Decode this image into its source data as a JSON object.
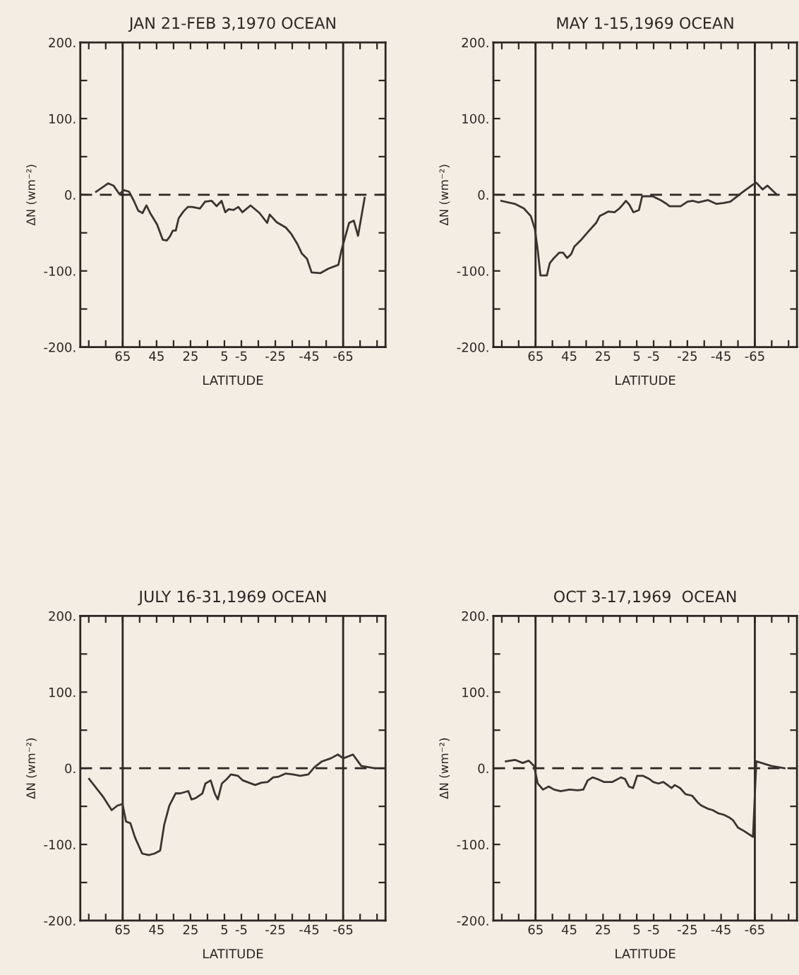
{
  "chart_data": [
    {
      "type": "line",
      "title": "JAN 21-FEB 3,1970 OCEAN",
      "xlabel": "LATITUDE",
      "ylabel": "ΔN (wm⁻²)",
      "xlim": [
        90,
        -90
      ],
      "ylim": [
        -200,
        200
      ],
      "xticks": [
        {
          "value": 85,
          "label": null
        },
        {
          "value": 75,
          "label": null
        },
        65,
        {
          "value": 55,
          "label": null
        },
        45,
        {
          "value": 35,
          "label": null
        },
        25,
        {
          "value": 15,
          "label": null
        },
        5,
        -5,
        {
          "value": -15,
          "label": null
        },
        -25,
        {
          "value": -35,
          "label": null
        },
        -45,
        {
          "value": -55,
          "label": null
        },
        -65,
        {
          "value": -75,
          "label": null
        },
        {
          "value": -85,
          "label": null
        }
      ],
      "yticks": [
        {
          "value": -200,
          "label": "-200."
        },
        {
          "value": -150,
          "label": null
        },
        {
          "value": -100,
          "label": "-100."
        },
        {
          "value": -50,
          "label": null
        },
        {
          "value": 0,
          "label": "0."
        },
        {
          "value": 50,
          "label": null
        },
        {
          "value": 100,
          "label": "100."
        },
        {
          "value": 150,
          "label": null
        },
        {
          "value": 200,
          "label": "200."
        }
      ],
      "ref_lines": [
        {
          "axis": "y",
          "value": 0,
          "line_style": "dashed"
        },
        {
          "axis": "x",
          "value": 65,
          "line_style": "solid"
        },
        {
          "axis": "x",
          "value": -65,
          "line_style": "solid"
        }
      ],
      "grid": false,
      "legend": false,
      "marker": "none",
      "line_style": "solid",
      "series": [
        {
          "color": "#3a3430",
          "x": [
            80.7,
            73.5,
            70.4,
            67.0,
            64.3,
            61.2,
            58.4,
            55.8,
            53.3,
            51.0,
            48.8,
            44.7,
            41.4,
            39.0,
            37.2,
            35.4,
            33.7,
            32.0,
            29.2,
            26.6,
            24.0,
            19.4,
            16.4,
            12.5,
            9.6,
            6.7,
            4.5,
            2.5,
            -0.4,
            -3.2,
            -5.6,
            -10.4,
            -15.7,
            -20.2,
            -21.7,
            -25.8,
            -31.2,
            -34.6,
            -38.1,
            -40.6,
            -43.7,
            -46.4,
            -51.5,
            -56.3,
            -62.2,
            -63.9,
            -68.5,
            -71.3,
            -73.8,
            -77.7
          ],
          "values": [
            4,
            15,
            12,
            1,
            6,
            4,
            -8,
            -21,
            -24,
            -14,
            -24,
            -39,
            -59,
            -60,
            -55,
            -47,
            -47,
            -31,
            -22,
            -16,
            -16,
            -18,
            -9,
            -8,
            -15,
            -8,
            -23,
            -19,
            -20,
            -16,
            -23,
            -14,
            -24,
            -37,
            -26,
            -36,
            -43,
            -52,
            -65,
            -77,
            -84,
            -102,
            -103,
            -97,
            -92,
            -74,
            -37,
            -34,
            -54,
            -4
          ]
        }
      ]
    },
    {
      "type": "line",
      "title": "MAY 1-15,1969 OCEAN",
      "xlabel": "LATITUDE",
      "ylabel": "ΔN (wm⁻²)",
      "xlim": [
        90,
        -90
      ],
      "ylim": [
        -200,
        200
      ],
      "xticks": [
        {
          "value": 85,
          "label": null
        },
        {
          "value": 75,
          "label": null
        },
        65,
        {
          "value": 55,
          "label": null
        },
        45,
        {
          "value": 35,
          "label": null
        },
        25,
        {
          "value": 15,
          "label": null
        },
        5,
        -5,
        {
          "value": -15,
          "label": null
        },
        -25,
        {
          "value": -35,
          "label": null
        },
        -45,
        {
          "value": -55,
          "label": null
        },
        -65,
        {
          "value": -75,
          "label": null
        },
        {
          "value": -85,
          "label": null
        }
      ],
      "yticks": [
        {
          "value": -200,
          "label": "-200."
        },
        {
          "value": -150,
          "label": null
        },
        {
          "value": -100,
          "label": "-100."
        },
        {
          "value": -50,
          "label": null
        },
        {
          "value": 0,
          "label": "0."
        },
        {
          "value": 50,
          "label": null
        },
        {
          "value": 100,
          "label": "100."
        },
        {
          "value": 150,
          "label": null
        },
        {
          "value": 200,
          "label": "200."
        }
      ],
      "ref_lines": [
        {
          "axis": "y",
          "value": 0,
          "line_style": "dashed"
        },
        {
          "axis": "x",
          "value": 65,
          "line_style": "solid"
        },
        {
          "axis": "x",
          "value": -65,
          "line_style": "solid"
        }
      ],
      "grid": false,
      "legend": false,
      "marker": "none",
      "line_style": "solid",
      "series": [
        {
          "color": "#3a3430",
          "x": [
            85.3,
            77.2,
            71.9,
            67.8,
            65.4,
            63.8,
            62.1,
            58.3,
            56.6,
            54.1,
            50.9,
            48.7,
            46.3,
            43.9,
            42.0,
            38.3,
            33.6,
            29.1,
            27.0,
            24.3,
            21.8,
            18.2,
            15.3,
            13.3,
            11.4,
            9.4,
            7.0,
            3.7,
            1.8,
            0.4,
            -4.4,
            -9.1,
            -12.0,
            -14.5,
            -21.0,
            -25.1,
            -28.3,
            -31.5,
            -37.3,
            -42.2,
            -46.2,
            -50.5,
            -56.9,
            -63.6,
            -65.8,
            -69.6,
            -72.5,
            -78.1
          ],
          "values": [
            -8,
            -12,
            -18,
            -28,
            -45,
            -71,
            -106,
            -106,
            -90,
            -83,
            -76,
            -76,
            -83,
            -78,
            -68,
            -60,
            -48,
            -37,
            -28,
            -25,
            -22,
            -23,
            -18,
            -13,
            -8,
            -13,
            -23,
            -20,
            -2,
            -2,
            -2,
            -7,
            -11,
            -15,
            -15,
            -9,
            -8,
            -10,
            -7,
            -12,
            -11,
            -9,
            2,
            13,
            16,
            7,
            12,
            0
          ]
        }
      ]
    },
    {
      "type": "line",
      "title": "JULY 16-31,1969 OCEAN",
      "xlabel": "LATITUDE",
      "ylabel": "ΔN (wm⁻²)",
      "xlim": [
        90,
        -90
      ],
      "ylim": [
        -200,
        200
      ],
      "xticks": [
        {
          "value": 85,
          "label": null
        },
        {
          "value": 75,
          "label": null
        },
        65,
        {
          "value": 55,
          "label": null
        },
        45,
        {
          "value": 35,
          "label": null
        },
        25,
        {
          "value": 15,
          "label": null
        },
        5,
        -5,
        {
          "value": -15,
          "label": null
        },
        -25,
        {
          "value": -35,
          "label": null
        },
        -45,
        {
          "value": -55,
          "label": null
        },
        -65,
        {
          "value": -75,
          "label": null
        },
        {
          "value": -85,
          "label": null
        }
      ],
      "yticks": [
        {
          "value": -200,
          "label": "-200."
        },
        {
          "value": -150,
          "label": null
        },
        {
          "value": -100,
          "label": "-100."
        },
        {
          "value": -50,
          "label": null
        },
        {
          "value": 0,
          "label": "0."
        },
        {
          "value": 50,
          "label": null
        },
        {
          "value": 100,
          "label": "100."
        },
        {
          "value": 150,
          "label": null
        },
        {
          "value": 200,
          "label": "200."
        }
      ],
      "ref_lines": [
        {
          "axis": "y",
          "value": 0,
          "line_style": "dashed"
        },
        {
          "axis": "x",
          "value": 65,
          "line_style": "solid"
        },
        {
          "axis": "x",
          "value": -65,
          "line_style": "solid"
        }
      ],
      "grid": false,
      "legend": false,
      "marker": "none",
      "line_style": "solid",
      "series": [
        {
          "color": "#3a3430",
          "x": [
            84.8,
            76.7,
            71.5,
            68.1,
            65.1,
            63.0,
            60.5,
            57.7,
            53.5,
            49.7,
            46.2,
            42.9,
            40.5,
            37.5,
            33.8,
            31.0,
            26.3,
            24.4,
            21.8,
            18.0,
            16.2,
            13.1,
            10.7,
            8.9,
            6.5,
            3.5,
            1.2,
            -3.0,
            -5.9,
            -13.1,
            -16.8,
            -20.5,
            -23.7,
            -27.0,
            -31.0,
            -35.3,
            -39.7,
            -44.5,
            -47.9,
            -52.5,
            -57.7,
            -61.9,
            -65.1,
            -70.8,
            -75.7,
            -83.6
          ],
          "values": [
            -14,
            -37,
            -55,
            -49,
            -47,
            -70,
            -72,
            -91,
            -112,
            -114,
            -112,
            -108,
            -74,
            -49,
            -33,
            -33,
            -30,
            -41,
            -39,
            -33,
            -20,
            -16,
            -33,
            -41,
            -20,
            -14,
            -8,
            -10,
            -16,
            -22,
            -19,
            -18,
            -12,
            -11,
            -7,
            -8,
            -10,
            -8,
            1,
            9,
            13,
            18,
            13,
            18,
            3,
            0
          ]
        }
      ]
    },
    {
      "type": "line",
      "title": "OCT 3-17,1969  OCEAN",
      "xlabel": "LATITUDE",
      "ylabel": "ΔN (wm⁻²)",
      "xlim": [
        90,
        -90
      ],
      "ylim": [
        -200,
        200
      ],
      "xticks": [
        {
          "value": 85,
          "label": null
        },
        {
          "value": 75,
          "label": null
        },
        65,
        {
          "value": 55,
          "label": null
        },
        45,
        {
          "value": 35,
          "label": null
        },
        25,
        {
          "value": 15,
          "label": null
        },
        5,
        -5,
        {
          "value": -15,
          "label": null
        },
        -25,
        {
          "value": -35,
          "label": null
        },
        -45,
        {
          "value": -55,
          "label": null
        },
        -65,
        {
          "value": -75,
          "label": null
        },
        {
          "value": -85,
          "label": null
        }
      ],
      "yticks": [
        {
          "value": -200,
          "label": "-200."
        },
        {
          "value": -150,
          "label": null
        },
        {
          "value": -100,
          "label": "-100."
        },
        {
          "value": -50,
          "label": null
        },
        {
          "value": 0,
          "label": "0."
        },
        {
          "value": 50,
          "label": null
        },
        {
          "value": 100,
          "label": "100."
        },
        {
          "value": 150,
          "label": null
        },
        {
          "value": 200,
          "label": "200."
        }
      ],
      "ref_lines": [
        {
          "axis": "y",
          "value": 0,
          "line_style": "dashed"
        },
        {
          "axis": "x",
          "value": 65,
          "line_style": "solid"
        },
        {
          "axis": "x",
          "value": -65,
          "line_style": "solid"
        }
      ],
      "grid": false,
      "legend": false,
      "marker": "none",
      "line_style": "solid",
      "series": [
        {
          "color": "#3a3430",
          "x": [
            82.6,
            77.2,
            72.6,
            69.0,
            65.9,
            63.7,
            60.6,
            57.2,
            54.0,
            50.1,
            44.9,
            40.0,
            36.7,
            34.1,
            31.2,
            28.5,
            24.5,
            19.4,
            14.4,
            12.0,
            9.6,
            7.2,
            4.8,
            1.2,
            -2.4,
            -4.8,
            -7.8,
            -10.8,
            -13.2,
            -15.6,
            -17.5,
            -20.7,
            -23.9,
            -27.8,
            -31.2,
            -33.3,
            -37.0,
            -40.0,
            -43.2,
            -46.6,
            -50.1,
            -52.0,
            -55.0,
            -58.3,
            -63.9,
            -65.9,
            -69.0,
            -74.7,
            -82.6
          ],
          "values": [
            9,
            11,
            7,
            10,
            3,
            -20,
            -28,
            -24,
            -28,
            -30,
            -28,
            -29,
            -28,
            -16,
            -12,
            -14,
            -18,
            -18,
            -12,
            -14,
            -24,
            -26,
            -10,
            -10,
            -14,
            -18,
            -20,
            -18,
            -22,
            -26,
            -22,
            -26,
            -34,
            -36,
            -45,
            -49,
            -53,
            -55,
            -59,
            -61,
            -65,
            -68,
            -78,
            -82,
            -90,
            9,
            7,
            3,
            0
          ]
        }
      ]
    }
  ]
}
